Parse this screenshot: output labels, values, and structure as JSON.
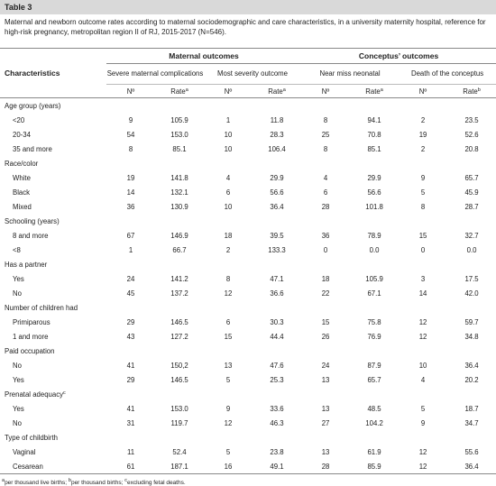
{
  "title": "Table 3",
  "caption": "Maternal and newborn outcome rates according to maternal sociodemographic and care characteristics, in a university maternity hospital, reference for high-risk pregnancy, metropolitan region II of RJ, 2015-2017 (N=546).",
  "table": {
    "header": {
      "characteristics": "Characteristics",
      "groups": [
        "Maternal outcomes",
        "Conceptus’ outcomes"
      ],
      "outcomes": [
        "Severe maternal complications",
        "Most severity outcome",
        "Near miss neonatal",
        "Death of the conceptus"
      ],
      "columns": [
        {
          "label": "Nº"
        },
        {
          "label": "Rate",
          "note": "a"
        },
        {
          "label": "Nº"
        },
        {
          "label": "Rate",
          "note": "a"
        },
        {
          "label": "Nº"
        },
        {
          "label": "Rate",
          "note": "a"
        },
        {
          "label": "Nº"
        },
        {
          "label": "Rate",
          "note": "b"
        }
      ]
    },
    "sections": [
      {
        "label": "Age group (years)",
        "rows": [
          {
            "label": "<20",
            "cells": [
              "9",
              "105.9",
              "1",
              "11.8",
              "8",
              "94.1",
              "2",
              "23.5"
            ]
          },
          {
            "label": "20-34",
            "cells": [
              "54",
              "153.0",
              "10",
              "28.3",
              "25",
              "70.8",
              "19",
              "52.6"
            ]
          },
          {
            "label": "35 and more",
            "cells": [
              "8",
              "85.1",
              "10",
              "106.4",
              "8",
              "85.1",
              "2",
              "20.8"
            ]
          }
        ]
      },
      {
        "label": "Race/color",
        "rows": [
          {
            "label": "White",
            "cells": [
              "19",
              "141.8",
              "4",
              "29.9",
              "4",
              "29.9",
              "9",
              "65.7"
            ]
          },
          {
            "label": "Black",
            "cells": [
              "14",
              "132.1",
              "6",
              "56.6",
              "6",
              "56.6",
              "5",
              "45.9"
            ]
          },
          {
            "label": "Mixed",
            "cells": [
              "36",
              "130.9",
              "10",
              "36.4",
              "28",
              "101.8",
              "8",
              "28.7"
            ]
          }
        ]
      },
      {
        "label": "Schooling (years)",
        "rows": [
          {
            "label": "8 and more",
            "cells": [
              "67",
              "146.9",
              "18",
              "39.5",
              "36",
              "78.9",
              "15",
              "32.7"
            ]
          },
          {
            "label": "<8",
            "cells": [
              "1",
              "66.7",
              "2",
              "133.3",
              "0",
              "0.0",
              "0",
              "0.0"
            ]
          }
        ]
      },
      {
        "label": "Has a partner",
        "rows": [
          {
            "label": "Yes",
            "cells": [
              "24",
              "141.2",
              "8",
              "47.1",
              "18",
              "105.9",
              "3",
              "17.5"
            ]
          },
          {
            "label": "No",
            "cells": [
              "45",
              "137.2",
              "12",
              "36.6",
              "22",
              "67.1",
              "14",
              "42.0"
            ]
          }
        ]
      },
      {
        "label": "Number of children had",
        "rows": [
          {
            "label": "Primiparous",
            "cells": [
              "29",
              "146.5",
              "6",
              "30.3",
              "15",
              "75.8",
              "12",
              "59.7"
            ]
          },
          {
            "label": "1 and more",
            "cells": [
              "43",
              "127.2",
              "15",
              "44.4",
              "26",
              "76.9",
              "12",
              "34.8"
            ]
          }
        ]
      },
      {
        "label": "Paid occupation",
        "rows": [
          {
            "label": "No",
            "cells": [
              "41",
              "150,2",
              "13",
              "47.6",
              "24",
              "87.9",
              "10",
              "36.4"
            ]
          },
          {
            "label": "Yes",
            "cells": [
              "29",
              "146.5",
              "5",
              "25.3",
              "13",
              "65.7",
              "4",
              "20.2"
            ]
          }
        ]
      },
      {
        "label": "Prenatal adequacy",
        "note": "c",
        "rows": [
          {
            "label": "Yes",
            "cells": [
              "41",
              "153.0",
              "9",
              "33.6",
              "13",
              "48.5",
              "5",
              "18.7"
            ]
          },
          {
            "label": "No",
            "cells": [
              "31",
              "119.7",
              "12",
              "46.3",
              "27",
              "104.2",
              "9",
              "34.7"
            ]
          }
        ]
      },
      {
        "label": "Type of childbirth",
        "rows": [
          {
            "label": "Vaginal",
            "cells": [
              "11",
              "52.4",
              "5",
              "23.8",
              "13",
              "61.9",
              "12",
              "55.6"
            ]
          },
          {
            "label": "Cesarean",
            "cells": [
              "61",
              "187.1",
              "16",
              "49.1",
              "28",
              "85.9",
              "12",
              "36.4"
            ]
          }
        ]
      }
    ]
  },
  "footnotes": [
    {
      "mark": "a",
      "text": "per thousand live births;"
    },
    {
      "mark": "b",
      "text": "per thousand births;"
    },
    {
      "mark": "c",
      "text": "excluding fetal deaths."
    }
  ]
}
